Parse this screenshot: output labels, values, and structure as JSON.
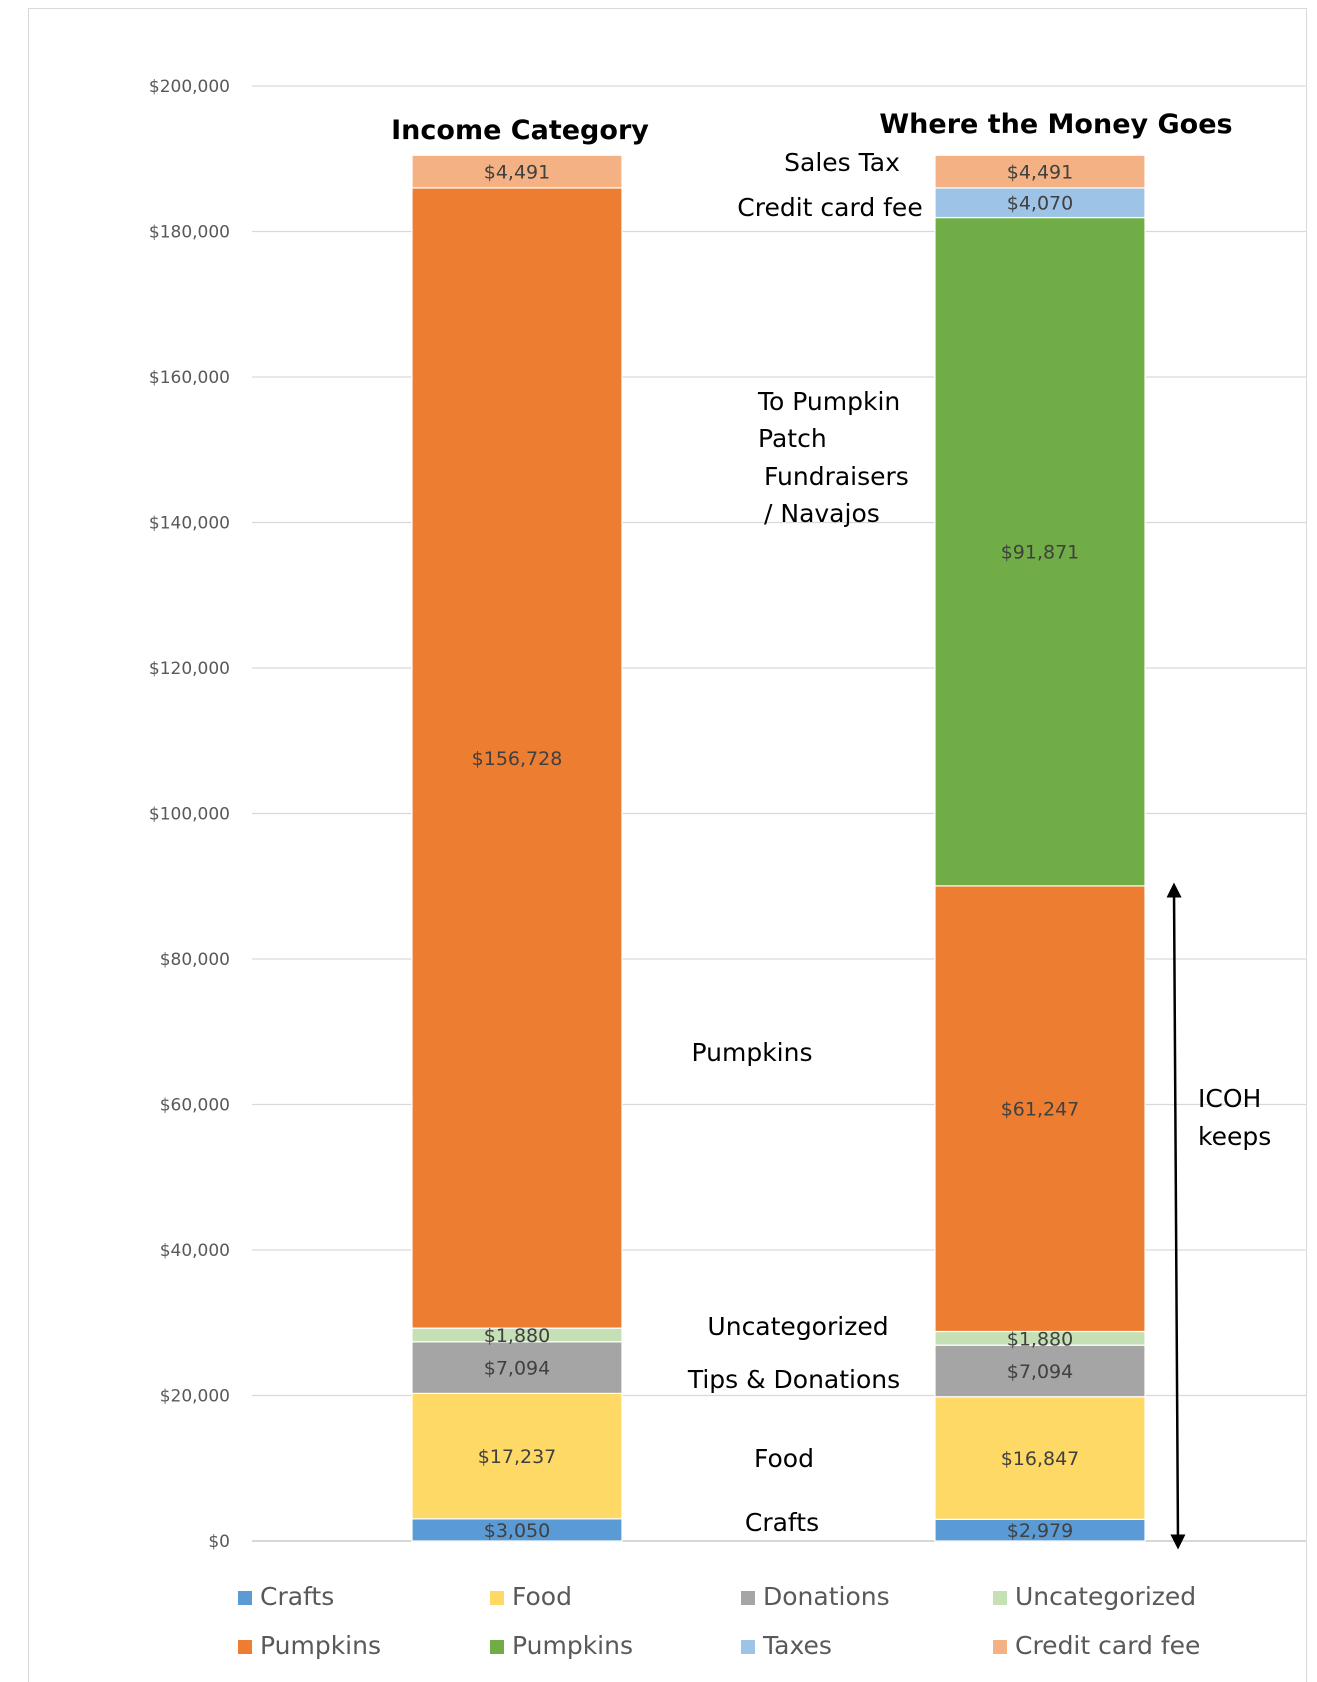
{
  "chart_data": {
    "type": "bar",
    "stacked": true,
    "categories": [
      "Income Category",
      "Where the Money Goes"
    ],
    "ylim": [
      0,
      200000
    ],
    "yticks": [
      0,
      20000,
      40000,
      60000,
      80000,
      100000,
      120000,
      140000,
      160000,
      180000,
      200000
    ],
    "ytick_labels": [
      "$0",
      "$20,000",
      "$40,000",
      "$60,000",
      "$80,000",
      "$100,000",
      "$120,000",
      "$140,000",
      "$160,000",
      "$180,000",
      "$200,000"
    ],
    "grid": true,
    "legend_position": "bottom",
    "stacks": [
      {
        "title": "Income Category",
        "segments": [
          {
            "legend": "Crafts",
            "value": 3050,
            "label": "$3,050",
            "color": "#5b9bd5"
          },
          {
            "legend": "Food",
            "value": 17237,
            "label": "$17,237",
            "color": "#ffd966"
          },
          {
            "legend": "Donations",
            "value": 7094,
            "label": "$7,094",
            "color": "#a5a5a5"
          },
          {
            "legend": "Uncategorized",
            "value": 1880,
            "label": "$1,880",
            "color": "#c5e0b4"
          },
          {
            "legend": "Pumpkins",
            "value": 156728,
            "label": "$156,728",
            "color": "#ed7d31"
          },
          {
            "legend": "Credit card fee",
            "value": 4491,
            "label": "$4,491",
            "color": "#f4b183"
          }
        ]
      },
      {
        "title": "Where the Money Goes",
        "segments": [
          {
            "legend": "Crafts",
            "value": 2979,
            "label": "$2,979",
            "color": "#5b9bd5"
          },
          {
            "legend": "Food",
            "value": 16847,
            "label": "$16,847",
            "color": "#ffd966"
          },
          {
            "legend": "Donations",
            "value": 7094,
            "label": "$7,094",
            "color": "#a5a5a5"
          },
          {
            "legend": "Uncategorized",
            "value": 1880,
            "label": "$1,880",
            "color": "#c5e0b4"
          },
          {
            "legend": "Pumpkins",
            "value": 61247,
            "label": "$61,247",
            "color": "#ed7d31"
          },
          {
            "legend": "Pumpkins",
            "value": 91871,
            "label": "$91,871",
            "color": "#70ad47"
          },
          {
            "legend": "Taxes",
            "value": 4070,
            "label": "$4,070",
            "color": "#9dc3e6"
          },
          {
            "legend": "Credit card fee",
            "value": 4491,
            "label": "$4,491",
            "color": "#f4b183"
          }
        ]
      }
    ],
    "legend": [
      {
        "name": "Crafts",
        "color": "#5b9bd5"
      },
      {
        "name": "Food",
        "color": "#ffd966"
      },
      {
        "name": "Donations",
        "color": "#a5a5a5"
      },
      {
        "name": "Uncategorized",
        "color": "#c5e0b4"
      },
      {
        "name": "Pumpkins",
        "color": "#ed7d31"
      },
      {
        "name": "Pumpkins",
        "color": "#70ad47"
      },
      {
        "name": "Taxes",
        "color": "#9dc3e6"
      },
      {
        "name": "Credit card fee",
        "color": "#f4b183"
      }
    ],
    "annotations": {
      "sales_tax": "Sales Tax",
      "credit_card_fee": "Credit card fee",
      "to_pumpkin": [
        "To Pumpkin",
        "Patch",
        "Fundraisers",
        "/ Navajos"
      ],
      "pumpkins": "Pumpkins",
      "uncategorized": "Uncategorized",
      "tips_donations": "Tips & Donations",
      "food": "Food",
      "crafts": "Crafts",
      "icoh_keeps": [
        "ICOH",
        "keeps"
      ]
    }
  }
}
